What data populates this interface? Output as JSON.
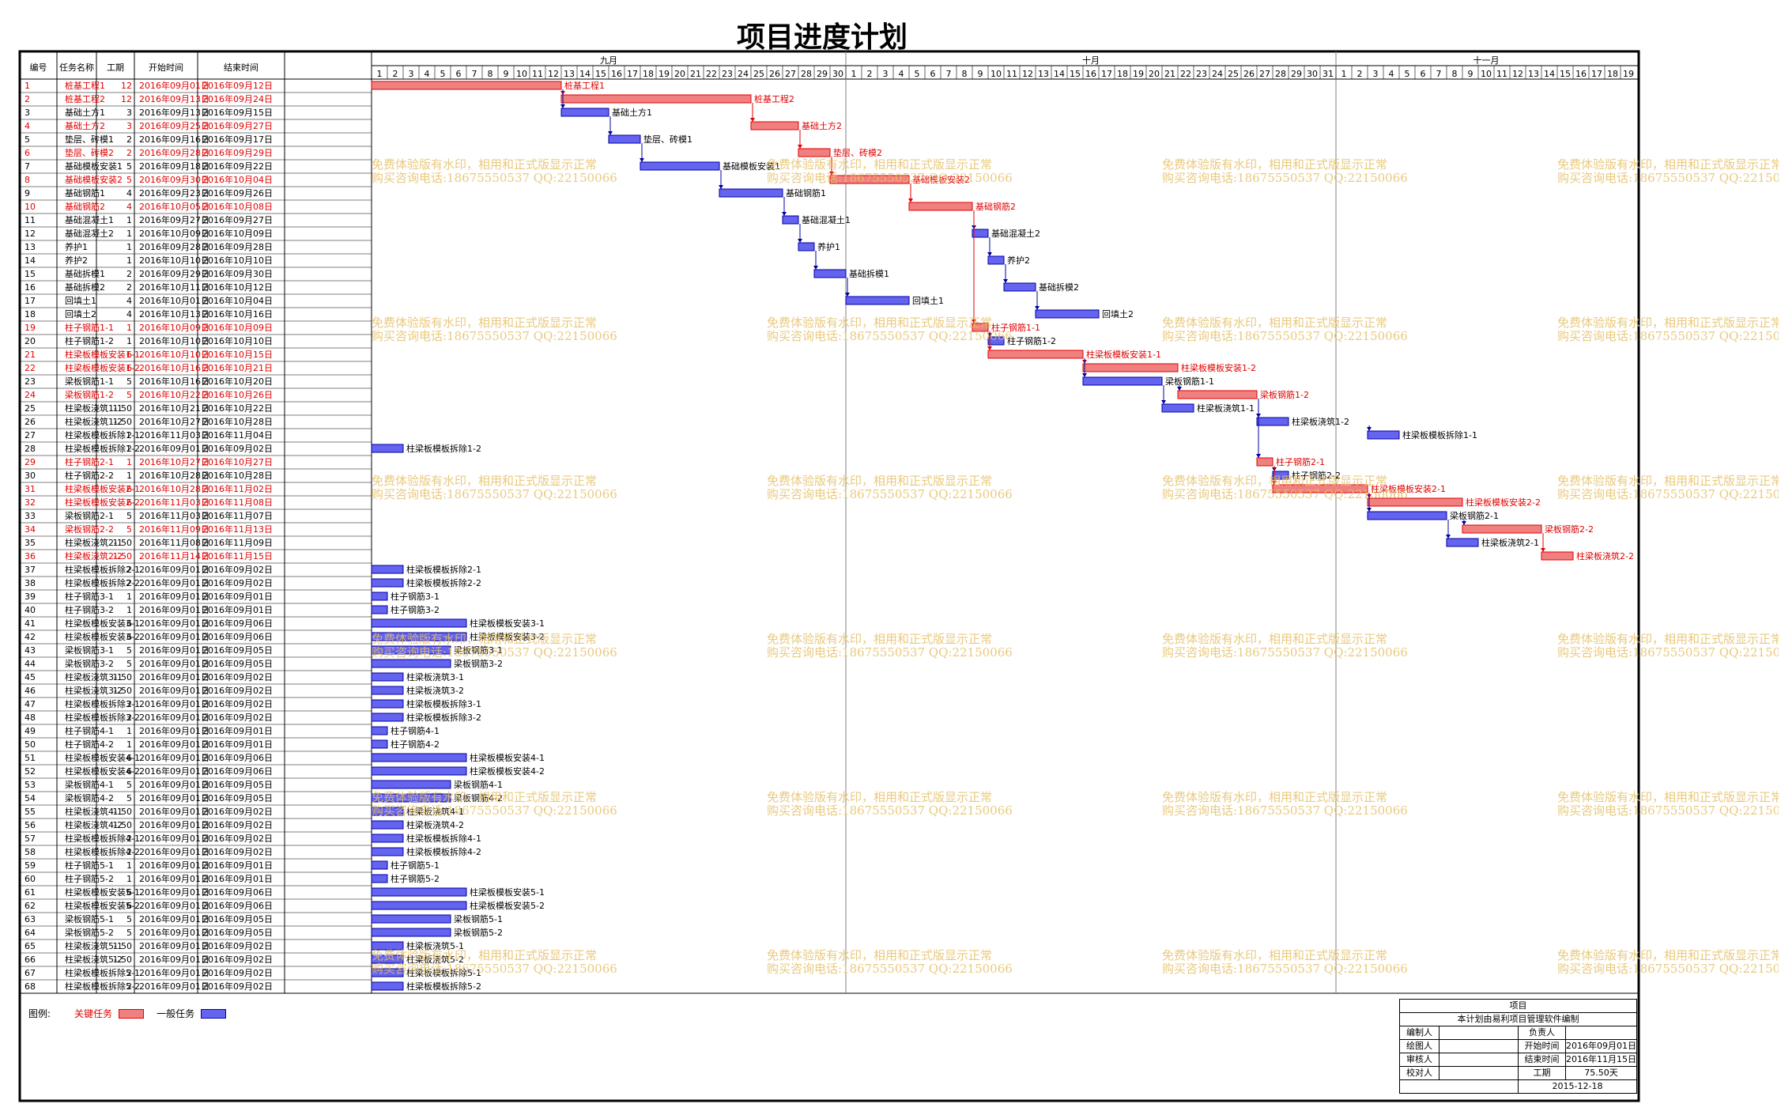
{
  "title": "项目进度计划",
  "colors": {
    "critical": "#f08080",
    "critical_text": "#e00000",
    "normal": "#6464f0",
    "grid": "#808080"
  },
  "table": {
    "headers": [
      "编号",
      "任务名称",
      "工期",
      "开始时间",
      "结束时间"
    ]
  },
  "timeline": {
    "months": [
      {
        "name": "九月",
        "days": 30
      },
      {
        "name": "十月",
        "days": 31
      },
      {
        "name": "十一月",
        "days": 19
      }
    ]
  },
  "chart_data": {
    "type": "gantt",
    "day_origin": "2016-09-01",
    "tasks": [
      {
        "id": "1",
        "name": "桩基工程1",
        "duration": "12",
        "start": "2016年09月01日",
        "end": "2016年09月12日",
        "s": 1,
        "e": 12,
        "critical": true
      },
      {
        "id": "2",
        "name": "桩基工程2",
        "duration": "12",
        "start": "2016年09月13日",
        "end": "2016年09月24日",
        "s": 13,
        "e": 24,
        "critical": true
      },
      {
        "id": "3",
        "name": "基础土方1",
        "duration": "3",
        "start": "2016年09月13日",
        "end": "2016年09月15日",
        "s": 13,
        "e": 15,
        "critical": false
      },
      {
        "id": "4",
        "name": "基础土方2",
        "duration": "3",
        "start": "2016年09月25日",
        "end": "2016年09月27日",
        "s": 25,
        "e": 27,
        "critical": true
      },
      {
        "id": "5",
        "name": "垫层、砖模1",
        "duration": "2",
        "start": "2016年09月16日",
        "end": "2016年09月17日",
        "s": 16,
        "e": 17,
        "critical": false
      },
      {
        "id": "6",
        "name": "垫层、砖模2",
        "duration": "2",
        "start": "2016年09月28日",
        "end": "2016年09月29日",
        "s": 28,
        "e": 29,
        "critical": true
      },
      {
        "id": "7",
        "name": "基础模板安装1",
        "duration": "5",
        "start": "2016年09月18日",
        "end": "2016年09月22日",
        "s": 18,
        "e": 22,
        "critical": false
      },
      {
        "id": "8",
        "name": "基础模板安装2",
        "duration": "5",
        "start": "2016年09月30日",
        "end": "2016年10月04日",
        "s": 30,
        "e": 34,
        "critical": true
      },
      {
        "id": "9",
        "name": "基础钢筋1",
        "duration": "4",
        "start": "2016年09月23日",
        "end": "2016年09月26日",
        "s": 23,
        "e": 26,
        "critical": false
      },
      {
        "id": "10",
        "name": "基础钢筋2",
        "duration": "4",
        "start": "2016年10月05日",
        "end": "2016年10月08日",
        "s": 35,
        "e": 38,
        "critical": true
      },
      {
        "id": "11",
        "name": "基础混凝土1",
        "duration": "1",
        "start": "2016年09月27日",
        "end": "2016年09月27日",
        "s": 27,
        "e": 27,
        "critical": false
      },
      {
        "id": "12",
        "name": "基础混凝土2",
        "duration": "1",
        "start": "2016年10月09日",
        "end": "2016年10月09日",
        "s": 39,
        "e": 39,
        "critical": false
      },
      {
        "id": "13",
        "name": "养护1",
        "duration": "1",
        "start": "2016年09月28日",
        "end": "2016年09月28日",
        "s": 28,
        "e": 28,
        "critical": false
      },
      {
        "id": "14",
        "name": "养护2",
        "duration": "1",
        "start": "2016年10月10日",
        "end": "2016年10月10日",
        "s": 40,
        "e": 40,
        "critical": false
      },
      {
        "id": "15",
        "name": "基础拆模1",
        "duration": "2",
        "start": "2016年09月29日",
        "end": "2016年09月30日",
        "s": 29,
        "e": 30,
        "critical": false
      },
      {
        "id": "16",
        "name": "基础拆模2",
        "duration": "2",
        "start": "2016年10月11日",
        "end": "2016年10月12日",
        "s": 41,
        "e": 42,
        "critical": false
      },
      {
        "id": "17",
        "name": "回填土1",
        "duration": "4",
        "start": "2016年10月01日",
        "end": "2016年10月04日",
        "s": 31,
        "e": 34,
        "critical": false
      },
      {
        "id": "18",
        "name": "回填土2",
        "duration": "4",
        "start": "2016年10月13日",
        "end": "2016年10月16日",
        "s": 43,
        "e": 46,
        "critical": false
      },
      {
        "id": "19",
        "name": "柱子钢筋1-1",
        "duration": "1",
        "start": "2016年10月09日",
        "end": "2016年10月09日",
        "s": 39,
        "e": 39,
        "critical": true
      },
      {
        "id": "20",
        "name": "柱子钢筋1-2",
        "duration": "1",
        "start": "2016年10月10日",
        "end": "2016年10月10日",
        "s": 40,
        "e": 40,
        "critical": false
      },
      {
        "id": "21",
        "name": "柱梁板模板安装1-1",
        "duration": "6",
        "start": "2016年10月10日",
        "end": "2016年10月15日",
        "s": 40,
        "e": 45,
        "critical": true
      },
      {
        "id": "22",
        "name": "柱梁板模板安装1-2",
        "duration": "6",
        "start": "2016年10月16日",
        "end": "2016年10月21日",
        "s": 46,
        "e": 51,
        "critical": true
      },
      {
        "id": "23",
        "name": "梁板钢筋1-1",
        "duration": "5",
        "start": "2016年10月16日",
        "end": "2016年10月20日",
        "s": 46,
        "e": 50,
        "critical": false
      },
      {
        "id": "24",
        "name": "梁板钢筋1-2",
        "duration": "5",
        "start": "2016年10月22日",
        "end": "2016年10月26日",
        "s": 52,
        "e": 56,
        "critical": true
      },
      {
        "id": "25",
        "name": "柱梁板浇筑1-1",
        "duration": "1.50",
        "start": "2016年10月21日",
        "end": "2016年10月22日",
        "s": 51,
        "e": 52,
        "critical": false
      },
      {
        "id": "26",
        "name": "柱梁板浇筑1-2",
        "duration": "1.50",
        "start": "2016年10月27日",
        "end": "2016年10月28日",
        "s": 57,
        "e": 58,
        "critical": false
      },
      {
        "id": "27",
        "name": "柱梁板模板拆除1-1",
        "duration": "2",
        "start": "2016年11月03日",
        "end": "2016年11月04日",
        "s": 64,
        "e": 65,
        "critical": false
      },
      {
        "id": "28",
        "name": "柱梁板模板拆除1-2",
        "duration": "2",
        "start": "2016年09月01日",
        "end": "2016年09月02日",
        "s": 1,
        "e": 2,
        "critical": false
      },
      {
        "id": "29",
        "name": "柱子钢筋2-1",
        "duration": "1",
        "start": "2016年10月27日",
        "end": "2016年10月27日",
        "s": 57,
        "e": 57,
        "critical": true
      },
      {
        "id": "30",
        "name": "柱子钢筋2-2",
        "duration": "1",
        "start": "2016年10月28日",
        "end": "2016年10月28日",
        "s": 58,
        "e": 58,
        "critical": false
      },
      {
        "id": "31",
        "name": "柱梁板模板安装2-1",
        "duration": "6",
        "start": "2016年10月28日",
        "end": "2016年11月02日",
        "s": 58,
        "e": 63,
        "critical": true
      },
      {
        "id": "32",
        "name": "柱梁板模板安装2-2",
        "duration": "6",
        "start": "2016年11月03日",
        "end": "2016年11月08日",
        "s": 64,
        "e": 69,
        "critical": true
      },
      {
        "id": "33",
        "name": "梁板钢筋2-1",
        "duration": "5",
        "start": "2016年11月03日",
        "end": "2016年11月07日",
        "s": 64,
        "e": 68,
        "critical": false
      },
      {
        "id": "34",
        "name": "梁板钢筋2-2",
        "duration": "5",
        "start": "2016年11月09日",
        "end": "2016年11月13日",
        "s": 70,
        "e": 74,
        "critical": true
      },
      {
        "id": "35",
        "name": "柱梁板浇筑2-1",
        "duration": "1.50",
        "start": "2016年11月08日",
        "end": "2016年11月09日",
        "s": 69,
        "e": 70,
        "critical": false
      },
      {
        "id": "36",
        "name": "柱梁板浇筑2-2",
        "duration": "1.50",
        "start": "2016年11月14日",
        "end": "2016年11月15日",
        "s": 75,
        "e": 76,
        "critical": true
      },
      {
        "id": "37",
        "name": "柱梁板模板拆除2-1",
        "duration": "2",
        "start": "2016年09月01日",
        "end": "2016年09月02日",
        "s": 1,
        "e": 2,
        "critical": false
      },
      {
        "id": "38",
        "name": "柱梁板模板拆除2-2",
        "duration": "2",
        "start": "2016年09月01日",
        "end": "2016年09月02日",
        "s": 1,
        "e": 2,
        "critical": false
      },
      {
        "id": "39",
        "name": "柱子钢筋3-1",
        "duration": "1",
        "start": "2016年09月01日",
        "end": "2016年09月01日",
        "s": 1,
        "e": 1,
        "critical": false
      },
      {
        "id": "40",
        "name": "柱子钢筋3-2",
        "duration": "1",
        "start": "2016年09月01日",
        "end": "2016年09月01日",
        "s": 1,
        "e": 1,
        "critical": false
      },
      {
        "id": "41",
        "name": "柱梁板模板安装3-1",
        "duration": "6",
        "start": "2016年09月01日",
        "end": "2016年09月06日",
        "s": 1,
        "e": 6,
        "critical": false
      },
      {
        "id": "42",
        "name": "柱梁板模板安装3-2",
        "duration": "6",
        "start": "2016年09月01日",
        "end": "2016年09月06日",
        "s": 1,
        "e": 6,
        "critical": false
      },
      {
        "id": "43",
        "name": "梁板钢筋3-1",
        "duration": "5",
        "start": "2016年09月01日",
        "end": "2016年09月05日",
        "s": 1,
        "e": 5,
        "critical": false
      },
      {
        "id": "44",
        "name": "梁板钢筋3-2",
        "duration": "5",
        "start": "2016年09月01日",
        "end": "2016年09月05日",
        "s": 1,
        "e": 5,
        "critical": false
      },
      {
        "id": "45",
        "name": "柱梁板浇筑3-1",
        "duration": "1.50",
        "start": "2016年09月01日",
        "end": "2016年09月02日",
        "s": 1,
        "e": 2,
        "critical": false
      },
      {
        "id": "46",
        "name": "柱梁板浇筑3-2",
        "duration": "1.50",
        "start": "2016年09月01日",
        "end": "2016年09月02日",
        "s": 1,
        "e": 2,
        "critical": false
      },
      {
        "id": "47",
        "name": "柱梁板模板拆除3-1",
        "duration": "2",
        "start": "2016年09月01日",
        "end": "2016年09月02日",
        "s": 1,
        "e": 2,
        "critical": false
      },
      {
        "id": "48",
        "name": "柱梁板模板拆除3-2",
        "duration": "2",
        "start": "2016年09月01日",
        "end": "2016年09月02日",
        "s": 1,
        "e": 2,
        "critical": false
      },
      {
        "id": "49",
        "name": "柱子钢筋4-1",
        "duration": "1",
        "start": "2016年09月01日",
        "end": "2016年09月01日",
        "s": 1,
        "e": 1,
        "critical": false
      },
      {
        "id": "50",
        "name": "柱子钢筋4-2",
        "duration": "1",
        "start": "2016年09月01日",
        "end": "2016年09月01日",
        "s": 1,
        "e": 1,
        "critical": false
      },
      {
        "id": "51",
        "name": "柱梁板模板安装4-1",
        "duration": "6",
        "start": "2016年09月01日",
        "end": "2016年09月06日",
        "s": 1,
        "e": 6,
        "critical": false
      },
      {
        "id": "52",
        "name": "柱梁板模板安装4-2",
        "duration": "6",
        "start": "2016年09月01日",
        "end": "2016年09月06日",
        "s": 1,
        "e": 6,
        "critical": false
      },
      {
        "id": "53",
        "name": "梁板钢筋4-1",
        "duration": "5",
        "start": "2016年09月01日",
        "end": "2016年09月05日",
        "s": 1,
        "e": 5,
        "critical": false
      },
      {
        "id": "54",
        "name": "梁板钢筋4-2",
        "duration": "5",
        "start": "2016年09月01日",
        "end": "2016年09月05日",
        "s": 1,
        "e": 5,
        "critical": false
      },
      {
        "id": "55",
        "name": "柱梁板浇筑4-1",
        "duration": "1.50",
        "start": "2016年09月01日",
        "end": "2016年09月02日",
        "s": 1,
        "e": 2,
        "critical": false
      },
      {
        "id": "56",
        "name": "柱梁板浇筑4-2",
        "duration": "1.50",
        "start": "2016年09月01日",
        "end": "2016年09月02日",
        "s": 1,
        "e": 2,
        "critical": false
      },
      {
        "id": "57",
        "name": "柱梁板模板拆除4-1",
        "duration": "2",
        "start": "2016年09月01日",
        "end": "2016年09月02日",
        "s": 1,
        "e": 2,
        "critical": false
      },
      {
        "id": "58",
        "name": "柱梁板模板拆除4-2",
        "duration": "2",
        "start": "2016年09月01日",
        "end": "2016年09月02日",
        "s": 1,
        "e": 2,
        "critical": false
      },
      {
        "id": "59",
        "name": "柱子钢筋5-1",
        "duration": "1",
        "start": "2016年09月01日",
        "end": "2016年09月01日",
        "s": 1,
        "e": 1,
        "critical": false
      },
      {
        "id": "60",
        "name": "柱子钢筋5-2",
        "duration": "1",
        "start": "2016年09月01日",
        "end": "2016年09月01日",
        "s": 1,
        "e": 1,
        "critical": false
      },
      {
        "id": "61",
        "name": "柱梁板模板安装5-1",
        "duration": "6",
        "start": "2016年09月01日",
        "end": "2016年09月06日",
        "s": 1,
        "e": 6,
        "critical": false
      },
      {
        "id": "62",
        "name": "柱梁板模板安装5-2",
        "duration": "6",
        "start": "2016年09月01日",
        "end": "2016年09月06日",
        "s": 1,
        "e": 6,
        "critical": false
      },
      {
        "id": "63",
        "name": "梁板钢筋5-1",
        "duration": "5",
        "start": "2016年09月01日",
        "end": "2016年09月05日",
        "s": 1,
        "e": 5,
        "critical": false
      },
      {
        "id": "64",
        "name": "梁板钢筋5-2",
        "duration": "5",
        "start": "2016年09月01日",
        "end": "2016年09月05日",
        "s": 1,
        "e": 5,
        "critical": false
      },
      {
        "id": "65",
        "name": "柱梁板浇筑5-1",
        "duration": "1.50",
        "start": "2016年09月01日",
        "end": "2016年09月02日",
        "s": 1,
        "e": 2,
        "critical": false
      },
      {
        "id": "66",
        "name": "柱梁板浇筑5-2",
        "duration": "1.50",
        "start": "2016年09月01日",
        "end": "2016年09月02日",
        "s": 1,
        "e": 2,
        "critical": false
      },
      {
        "id": "67",
        "name": "柱梁板模板拆除5-1",
        "duration": "2",
        "start": "2016年09月01日",
        "end": "2016年09月02日",
        "s": 1,
        "e": 2,
        "critical": false
      },
      {
        "id": "68",
        "name": "柱梁板模板拆除5-2",
        "duration": "2",
        "start": "2016年09月01日",
        "end": "2016年09月02日",
        "s": 1,
        "e": 2,
        "critical": false
      }
    ]
  },
  "legend": {
    "label": "图例:",
    "critical": "关键任务",
    "normal": "一般任务"
  },
  "watermark": {
    "line1": "免费体验版有水印，相用和正式版显示正常",
    "line2": "购买咨询电话:18675550537 QQ:22150066"
  },
  "info": {
    "title": "项目",
    "subtitle": "本计划由易利项目管理软件编制",
    "rows": [
      [
        "编制人",
        "",
        "负责人",
        ""
      ],
      [
        "绘图人",
        "",
        "开始时间",
        "2016年09月01日"
      ],
      [
        "审核人",
        "",
        "结束时间",
        "2016年11月15日"
      ],
      [
        "校对人",
        "",
        "工期",
        "75.50天"
      ]
    ],
    "date": "2015-12-18"
  }
}
